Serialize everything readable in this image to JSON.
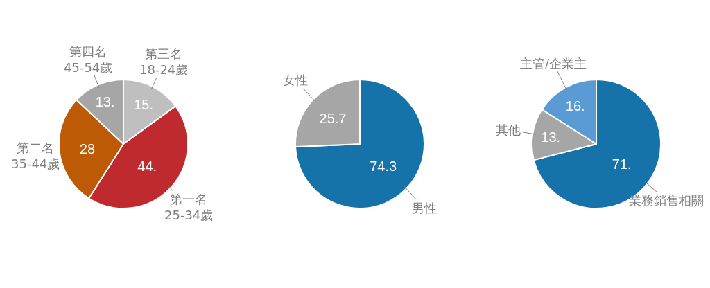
{
  "chart_data": [
    {
      "type": "pie",
      "categories": [
        "第三名\n18-24歲",
        "第一名\n25-34歲",
        "第二名\n35-44歲",
        "第四名\n45-54歲"
      ],
      "values": [
        15,
        44,
        28,
        13
      ],
      "value_labels": [
        "15.",
        "44.",
        "28",
        "13."
      ],
      "colors": [
        "#bfbfbf",
        "#bf2a2f",
        "#bd5a06",
        "#a6a6a6"
      ]
    },
    {
      "type": "pie",
      "categories": [
        "男性",
        "女性"
      ],
      "values": [
        74.3,
        25.7
      ],
      "data_labels": true,
      "colors": [
        "#1673aa",
        "#a6a6a6"
      ]
    },
    {
      "type": "pie",
      "categories": [
        "業務銷售相關",
        "其他",
        "主管/企業主"
      ],
      "values": [
        71,
        13,
        16
      ],
      "value_labels": [
        "71.",
        "13.",
        "16."
      ],
      "colors": [
        "#1673aa",
        "#a6a6a6",
        "#5b9bd5"
      ]
    }
  ]
}
